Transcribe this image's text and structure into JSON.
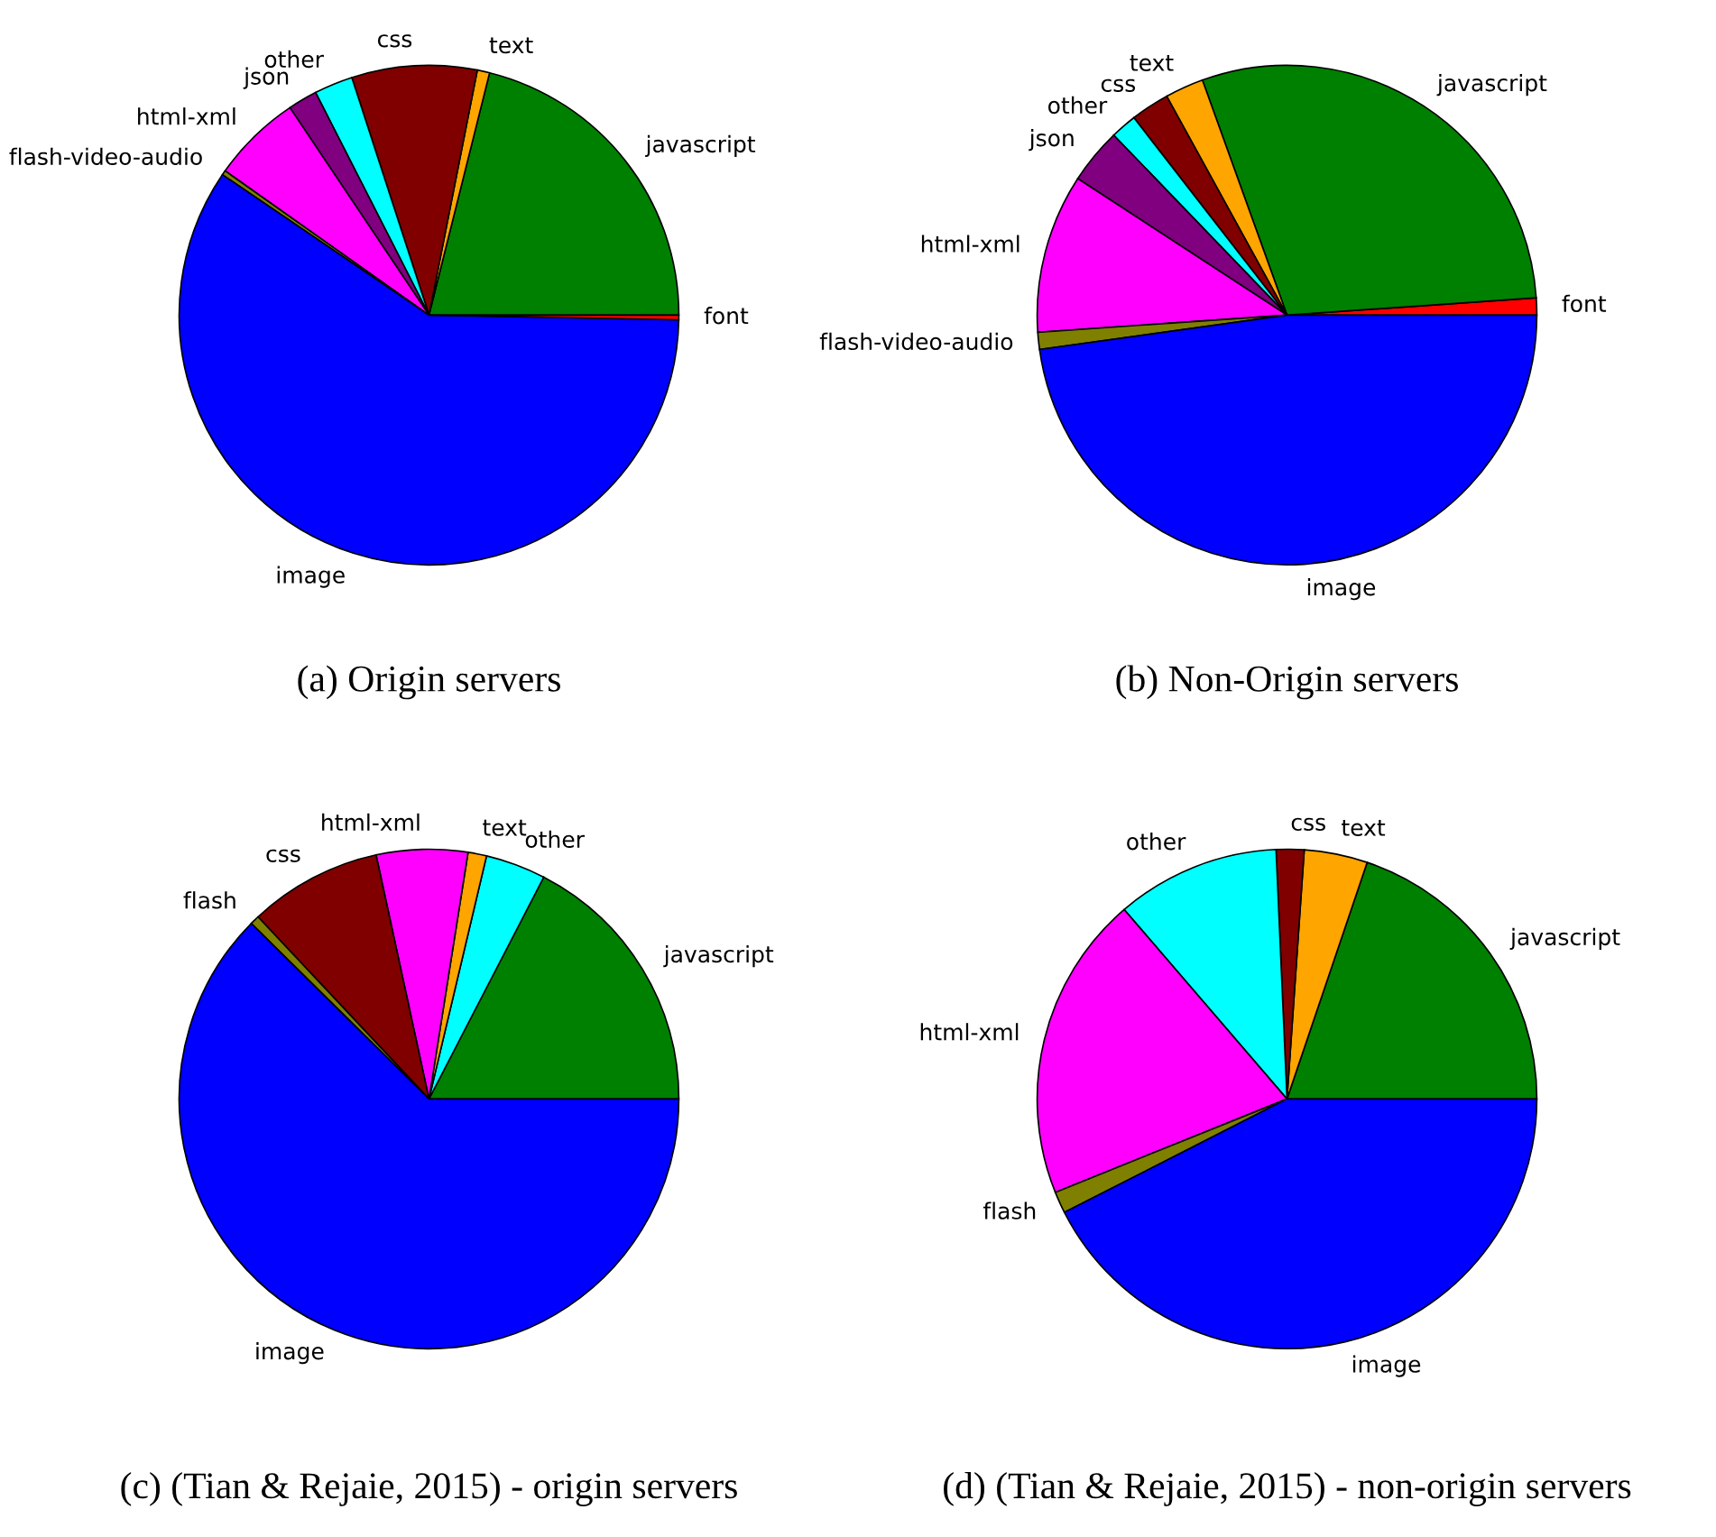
{
  "chart_data": [
    {
      "type": "pie",
      "title": "(a) Origin servers",
      "categories": [
        "javascript",
        "text",
        "css",
        "other",
        "json",
        "html-xml",
        "flash-video-audio",
        "image",
        "font"
      ],
      "values": [
        21.1,
        0.8,
        8.1,
        2.5,
        1.9,
        5.8,
        0.3,
        59.2,
        0.3
      ],
      "colors": [
        "#008000",
        "#ffa500",
        "#800000",
        "#00ffff",
        "#800080",
        "#ff00ff",
        "#808000",
        "#0000ff",
        "#ff0000"
      ]
    },
    {
      "type": "pie",
      "title": "(b) Non-Origin servers",
      "categories": [
        "font",
        "javascript",
        "text",
        "css",
        "other",
        "json",
        "html-xml",
        "flash-video-audio",
        "image"
      ],
      "values": [
        1.1,
        29.4,
        2.5,
        2.5,
        1.7,
        3.6,
        10.3,
        1.1,
        47.8
      ],
      "colors": [
        "#ff0000",
        "#008000",
        "#ffa500",
        "#800000",
        "#00ffff",
        "#800080",
        "#ff00ff",
        "#808000",
        "#0000ff"
      ]
    },
    {
      "type": "pie",
      "title": "(c) (Tian & Rejaie, 2015) - origin servers",
      "categories": [
        "javascript",
        "other",
        "text",
        "html-xml",
        "css",
        "flash",
        "image"
      ],
      "values": [
        17.4,
        3.9,
        1.2,
        5.9,
        8.6,
        0.6,
        62.4
      ],
      "colors": [
        "#008000",
        "#00ffff",
        "#ffa500",
        "#ff00ff",
        "#800000",
        "#808000",
        "#0000ff"
      ]
    },
    {
      "type": "pie",
      "title": "(d) (Tian & Rejaie, 2015) - non-origin servers",
      "categories": [
        "javascript",
        "text",
        "css",
        "other",
        "html-xml",
        "flash",
        "image"
      ],
      "values": [
        19.8,
        4.1,
        1.8,
        10.6,
        19.8,
        1.4,
        42.5
      ],
      "colors": [
        "#008000",
        "#ffa500",
        "#800000",
        "#00ffff",
        "#ff00ff",
        "#808000",
        "#0000ff"
      ]
    }
  ]
}
